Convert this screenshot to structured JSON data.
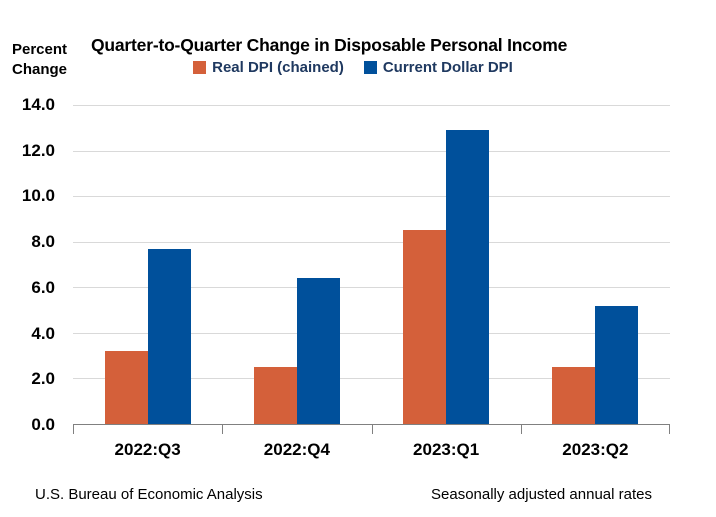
{
  "header": {
    "y_axis_title": {
      "line1": "Percent",
      "line2": "Change"
    }
  },
  "footer": {
    "left": "U.S. Bureau of Economic Analysis",
    "right": "Seasonally adjusted annual rates"
  },
  "colors": {
    "real_dpi_orange": "#D4603A",
    "current_dollar_blue": "#00509B",
    "legend_text": "#1F3960",
    "gridline": "#D9D9D9",
    "axis_line": "#808080",
    "text": "#000000",
    "background": "#FFFFFF"
  },
  "chart_data": {
    "type": "bar",
    "title": "Quarter-to-Quarter Change in Disposable Personal Income",
    "ylabel": "Percent Change",
    "categories": [
      "2022:Q3",
      "2022:Q4",
      "2023:Q1",
      "2023:Q2"
    ],
    "series": [
      {
        "name": "Real DPI (chained)",
        "color": "#D4603A",
        "values": [
          3.2,
          2.5,
          8.5,
          2.5
        ]
      },
      {
        "name": "Current Dollar DPI",
        "color": "#00509B",
        "values": [
          7.7,
          6.4,
          12.9,
          5.2
        ]
      }
    ],
    "ylim": [
      0,
      14
    ],
    "y_tick_step": 2,
    "y_tick_labels": [
      "0.0",
      "2.0",
      "4.0",
      "6.0",
      "8.0",
      "10.0",
      "12.0",
      "14.0"
    ],
    "grid": true,
    "legend_position": "top-center",
    "notes": {
      "left": "U.S. Bureau of Economic Analysis",
      "right": "Seasonally adjusted annual rates"
    }
  }
}
